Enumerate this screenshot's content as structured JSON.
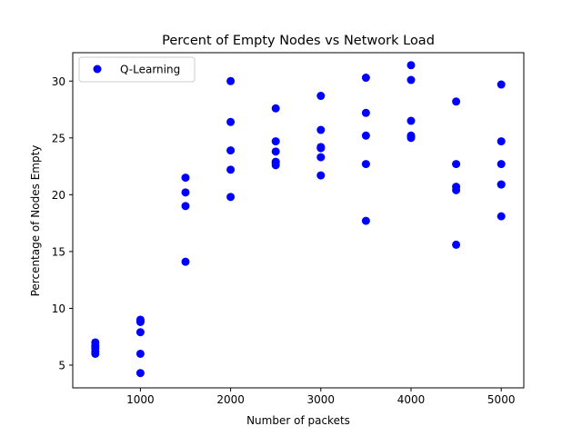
{
  "chart_data": {
    "type": "scatter",
    "title": "Percent of Empty Nodes vs Network Load",
    "xlabel": "Number of packets",
    "ylabel": "Percentage of Nodes Empty",
    "xlim": [
      250,
      5250
    ],
    "ylim": [
      3.0,
      32.5
    ],
    "xticks": [
      1000,
      2000,
      3000,
      4000,
      5000
    ],
    "yticks": [
      5,
      10,
      15,
      20,
      25,
      30
    ],
    "grid": false,
    "legend_position": "top-left",
    "series": [
      {
        "name": "Q-Learning",
        "color": "#0000ff",
        "x": [
          500,
          500,
          500,
          500,
          500,
          1000,
          1000,
          1000,
          1000,
          1000,
          1000,
          1500,
          1500,
          1500,
          1500,
          2000,
          2000,
          2000,
          2000,
          2000,
          2500,
          2500,
          2500,
          2500,
          2500,
          2500,
          3000,
          3000,
          3000,
          3000,
          3000,
          3000,
          3500,
          3500,
          3500,
          3500,
          3500,
          4000,
          4000,
          4000,
          4000,
          4000,
          4000,
          4500,
          4500,
          4500,
          4500,
          4500,
          5000,
          5000,
          5000,
          5000,
          5000,
          5000
        ],
        "y": [
          7.0,
          6.7,
          6.5,
          6.2,
          6.0,
          9.0,
          8.8,
          7.9,
          6.0,
          4.3,
          8.9,
          21.5,
          20.2,
          19.0,
          14.1,
          30.0,
          26.4,
          23.9,
          22.2,
          19.8,
          27.6,
          24.7,
          23.8,
          22.8,
          22.6,
          22.9,
          28.7,
          25.7,
          24.1,
          23.3,
          21.7,
          24.2,
          30.3,
          27.2,
          25.2,
          22.7,
          17.7,
          31.4,
          30.1,
          26.5,
          25.2,
          25.0,
          25.1,
          28.2,
          22.7,
          20.7,
          20.4,
          15.6,
          29.7,
          24.7,
          22.7,
          20.9,
          18.1,
          20.9
        ]
      }
    ]
  }
}
